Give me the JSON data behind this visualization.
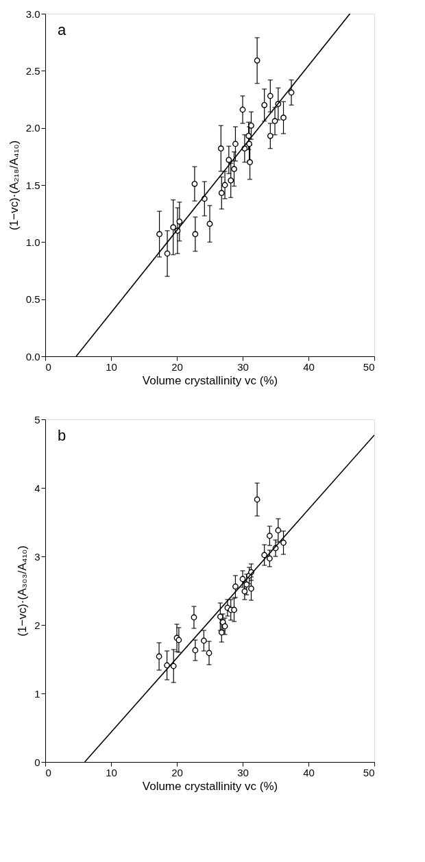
{
  "chart_data": [
    {
      "type": "scatter",
      "annotations": [
        "a"
      ],
      "xlabel": "Volume crystallinity vc (%)",
      "ylabel": "(1−vc)·(A₂₁₈/A₄₁₀)",
      "marker": "circle",
      "grid": false,
      "legend": false,
      "xlim": [
        0,
        50
      ],
      "ylim": [
        0,
        3.0
      ],
      "xticks": [
        0,
        10,
        20,
        30,
        40,
        50
      ],
      "yticks": [
        {
          "value": 0,
          "label": "0.0"
        },
        0.5,
        {
          "value": 1,
          "label": "1.0"
        },
        1.5,
        {
          "value": 2,
          "label": "2.0"
        },
        2.5,
        {
          "value": 3,
          "label": "3.0"
        }
      ],
      "series": [
        {
          "color": "#000000",
          "x": [
            17.35,
            18.55,
            19.45,
            20.1,
            20.4,
            22.7,
            22.8,
            24.2,
            25.0,
            26.7,
            26.8,
            27.3,
            27.9,
            28.2,
            28.7,
            28.9,
            30.0,
            30.3,
            30.9,
            31.0,
            31.1,
            31.3,
            32.2,
            33.3,
            34.2,
            34.2,
            34.9,
            35.4,
            36.2,
            37.4
          ],
          "values": [
            1.07,
            0.9,
            1.13,
            1.1,
            1.18,
            1.51,
            1.07,
            1.38,
            1.16,
            1.82,
            1.43,
            1.5,
            1.72,
            1.54,
            1.64,
            1.86,
            2.16,
            1.82,
            1.93,
            1.86,
            1.7,
            2.02,
            2.59,
            2.2,
            2.28,
            1.93,
            2.06,
            2.21,
            2.09,
            2.31
          ],
          "errors": [
            0.2,
            0.2,
            0.24,
            0.2,
            0.17,
            0.15,
            0.15,
            0.15,
            0.16,
            0.2,
            0.14,
            0.12,
            0.12,
            0.15,
            0.15,
            0.15,
            0.12,
            0.12,
            0.12,
            0.15,
            0.15,
            0.12,
            0.2,
            0.14,
            0.14,
            0.11,
            0.12,
            0.14,
            0.14,
            0.11
          ]
        },
        {
          "type": "line",
          "color": "#000000",
          "marker": "none",
          "line_style": "solid",
          "x": [
            4.7,
            46.3
          ],
          "values": [
            0,
            3.0
          ]
        }
      ]
    },
    {
      "type": "scatter",
      "annotations": [
        "b"
      ],
      "xlabel": "Volume crystallinity vc (%)",
      "ylabel": "(1−vc)·(A₃₀₃/A₄₁₀)",
      "marker": "circle",
      "grid": false,
      "legend": false,
      "xlim": [
        0,
        50
      ],
      "ylim": [
        0,
        5
      ],
      "xticks": [
        0,
        10,
        20,
        30,
        40,
        50
      ],
      "yticks": [
        0,
        1,
        2,
        3,
        4,
        5
      ],
      "series": [
        {
          "color": "#000000",
          "x": [
            17.3,
            18.5,
            19.5,
            20.0,
            20.3,
            22.6,
            22.8,
            24.1,
            24.9,
            26.6,
            26.8,
            27.0,
            27.3,
            27.7,
            28.2,
            28.7,
            28.9,
            30.0,
            30.3,
            30.6,
            31.0,
            31.3,
            31.3,
            32.2,
            33.3,
            34.1,
            34.1,
            35.0,
            35.4,
            36.2
          ],
          "values": [
            1.54,
            1.41,
            1.4,
            1.81,
            1.78,
            2.11,
            1.63,
            1.77,
            1.59,
            2.12,
            1.89,
            2.04,
            1.98,
            2.25,
            2.22,
            2.22,
            2.56,
            2.67,
            2.49,
            2.59,
            2.72,
            2.53,
            2.77,
            3.83,
            3.02,
            3.3,
            2.97,
            3.12,
            3.38,
            3.2
          ],
          "errors": [
            0.2,
            0.21,
            0.24,
            0.2,
            0.18,
            0.16,
            0.15,
            0.15,
            0.17,
            0.2,
            0.14,
            0.12,
            0.12,
            0.12,
            0.15,
            0.17,
            0.16,
            0.12,
            0.12,
            0.15,
            0.12,
            0.17,
            0.12,
            0.24,
            0.15,
            0.14,
            0.12,
            0.12,
            0.17,
            0.17
          ]
        },
        {
          "type": "line",
          "color": "#000000",
          "marker": "none",
          "line_style": "solid",
          "x": [
            6.0,
            50
          ],
          "values": [
            0,
            4.77
          ]
        }
      ]
    }
  ]
}
